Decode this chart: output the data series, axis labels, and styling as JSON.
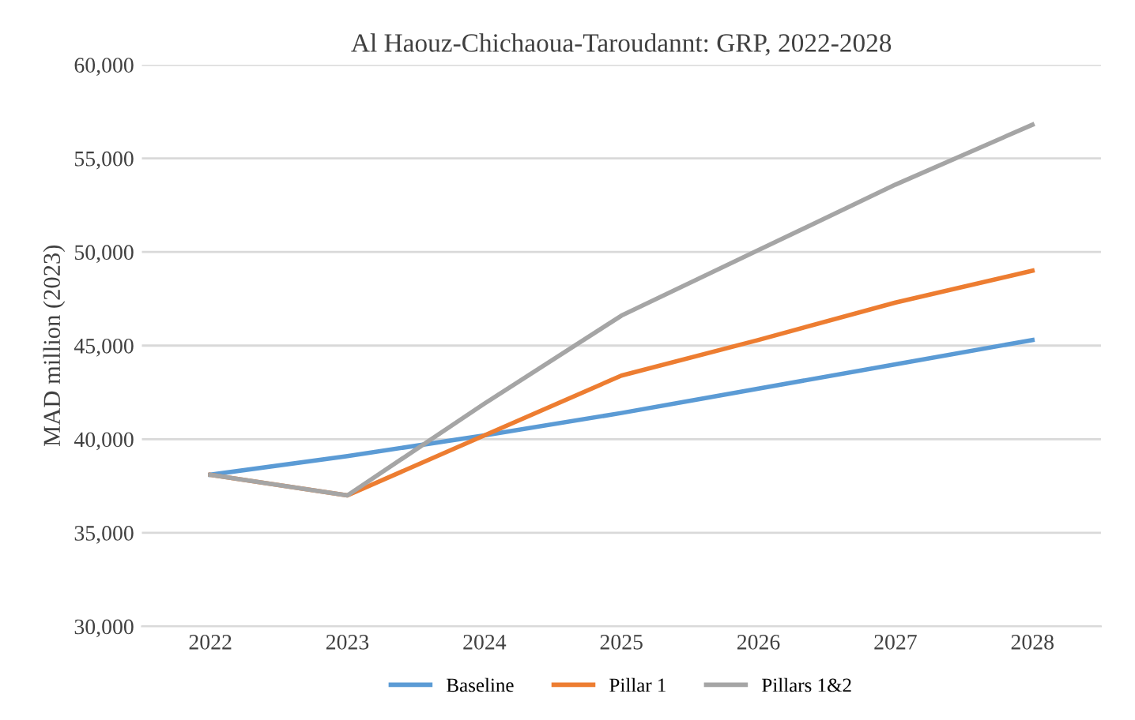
{
  "chart_data": {
    "type": "line",
    "title": "Al Haouz-Chichaoua-Taroudannt: GRP, 2022-2028",
    "ylabel": "MAD million (2023)",
    "categories": [
      "2022",
      "2023",
      "2024",
      "2025",
      "2026",
      "2027",
      "2028"
    ],
    "series": [
      {
        "name": "Baseline",
        "color": "#5b9bd5",
        "values": [
          38100,
          39100,
          40200,
          41400,
          42700,
          44000,
          45300
        ]
      },
      {
        "name": "Pillar 1",
        "color": "#ed7d31",
        "values": [
          38100,
          37000,
          40200,
          43400,
          45300,
          47300,
          49000
        ]
      },
      {
        "name": "Pillars 1&2",
        "color": "#a5a5a5",
        "values": [
          38100,
          37000,
          41900,
          46600,
          50100,
          53600,
          56800
        ]
      }
    ],
    "ylim": [
      30000,
      60000
    ],
    "yticks": [
      {
        "value": 30000,
        "label": "30,000"
      },
      {
        "value": 35000,
        "label": "35,000"
      },
      {
        "value": 40000,
        "label": "40,000"
      },
      {
        "value": 45000,
        "label": "45,000"
      },
      {
        "value": 50000,
        "label": "50,000"
      },
      {
        "value": 55000,
        "label": "55,000"
      },
      {
        "value": 60000,
        "label": "60,000"
      }
    ],
    "grid": "y",
    "legend": "bottom",
    "marker": "none",
    "line_style": "solid"
  }
}
